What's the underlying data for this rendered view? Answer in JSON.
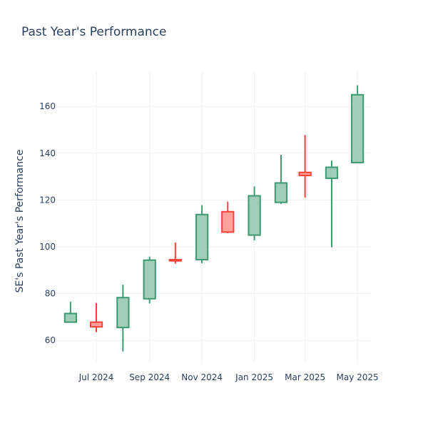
{
  "chart_data": {
    "type": "candlestick",
    "title": "Past Year's Performance",
    "xlabel": "",
    "ylabel": "SE's Past Year's Performance",
    "x_ticks": [
      "Jul 2024",
      "Sep 2024",
      "Nov 2024",
      "Jan 2025",
      "Mar 2025",
      "May 2025"
    ],
    "y_ticks": [
      60,
      80,
      100,
      120,
      140,
      160
    ],
    "ylim": [
      50,
      175
    ],
    "grid": true,
    "colors": {
      "increasing_line": "#3d9970",
      "increasing_fill": "#a0cdb8",
      "decreasing_line": "#ff4136",
      "decreasing_fill": "#ffa09b",
      "grid": "#eef1f5",
      "text": "#2a3f5f"
    },
    "series": [
      {
        "date": "2024-06-01",
        "open": 67.8,
        "high": 76.5,
        "low": 67.8,
        "close": 71.5
      },
      {
        "date": "2024-07-01",
        "open": 67.8,
        "high": 76.0,
        "low": 63.5,
        "close": 65.8
      },
      {
        "date": "2024-08-01",
        "open": 65.5,
        "high": 83.8,
        "low": 55.3,
        "close": 78.3
      },
      {
        "date": "2024-09-01",
        "open": 77.8,
        "high": 95.8,
        "low": 75.8,
        "close": 94.3
      },
      {
        "date": "2024-10-01",
        "open": 94.5,
        "high": 101.8,
        "low": 92.8,
        "close": 94.0
      },
      {
        "date": "2024-11-01",
        "open": 94.5,
        "high": 117.8,
        "low": 93.0,
        "close": 113.8
      },
      {
        "date": "2024-12-01",
        "open": 115.0,
        "high": 119.3,
        "low": 105.8,
        "close": 106.3
      },
      {
        "date": "2025-01-01",
        "open": 105.0,
        "high": 125.8,
        "low": 102.8,
        "close": 121.8
      },
      {
        "date": "2025-02-01",
        "open": 119.0,
        "high": 139.3,
        "low": 118.3,
        "close": 127.3
      },
      {
        "date": "2025-03-01",
        "open": 131.8,
        "high": 147.8,
        "low": 121.0,
        "close": 130.5
      },
      {
        "date": "2025-04-01",
        "open": 129.3,
        "high": 136.8,
        "low": 99.8,
        "close": 134.0
      },
      {
        "date": "2025-05-01",
        "open": 136.0,
        "high": 169.0,
        "low": 136.0,
        "close": 165.0
      }
    ]
  }
}
